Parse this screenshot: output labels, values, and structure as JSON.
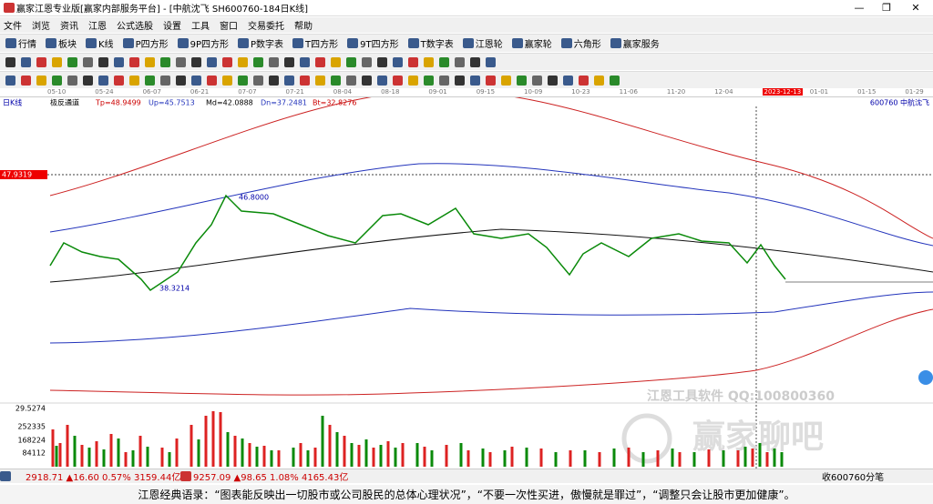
{
  "title_bar": "赢家江恩专业版[赢家内部服务平台] - [中航沈飞  SH600760-184日K线]",
  "menu": [
    "文件",
    "浏览",
    "资讯",
    "江恩",
    "公式选股",
    "设置",
    "工具",
    "窗口",
    "交易委托",
    "帮助"
  ],
  "toolbar": [
    "行情",
    "板块",
    "K线",
    "P四方形",
    "9P四方形",
    "P数字表",
    "T四方形",
    "9T四方形",
    "T数字表",
    "江恩轮",
    "赢家轮",
    "六角形",
    "赢家服务"
  ],
  "date_axis": [
    "05-10",
    "05-24",
    "06-07",
    "06-21",
    "07-07",
    "07-21",
    "08-04",
    "08-18",
    "09-01",
    "09-15",
    "10-09",
    "10-23",
    "11-06",
    "11-20",
    "12-04",
    "2023-12-13",
    "01-01",
    "01-15",
    "01-29"
  ],
  "chart": {
    "period": "日K线",
    "indicator": "极反通道",
    "params": [
      "Tp=48.9499",
      "Up=45.7513",
      "Md=42.0888",
      "Dn=37.2481",
      "Bt=32.8276"
    ],
    "stock": "600760  中航沈飞",
    "price_marker": "47.9319",
    "high_label": "46.8000",
    "low_label": "38.3214",
    "volume_labels": [
      "29.5274",
      "252335",
      "168224",
      "84112"
    ],
    "watermark": [
      "江恩工具软件  QQ:100800360",
      "赢家聊吧"
    ]
  },
  "status": {
    "index1": "2918.71 ▲16.60 0.57% 3159.44亿",
    "index2": "9257.09 ▲98.65 1.08% 4165.43亿",
    "right": "收600760分笔"
  },
  "footer": "江恩经典语录：“图表能反映出一切股市或公司股民的总体心理状况”，“不要一次性买进，傲慢就是罪过”，“调整只会让股市更加健康”。"
}
